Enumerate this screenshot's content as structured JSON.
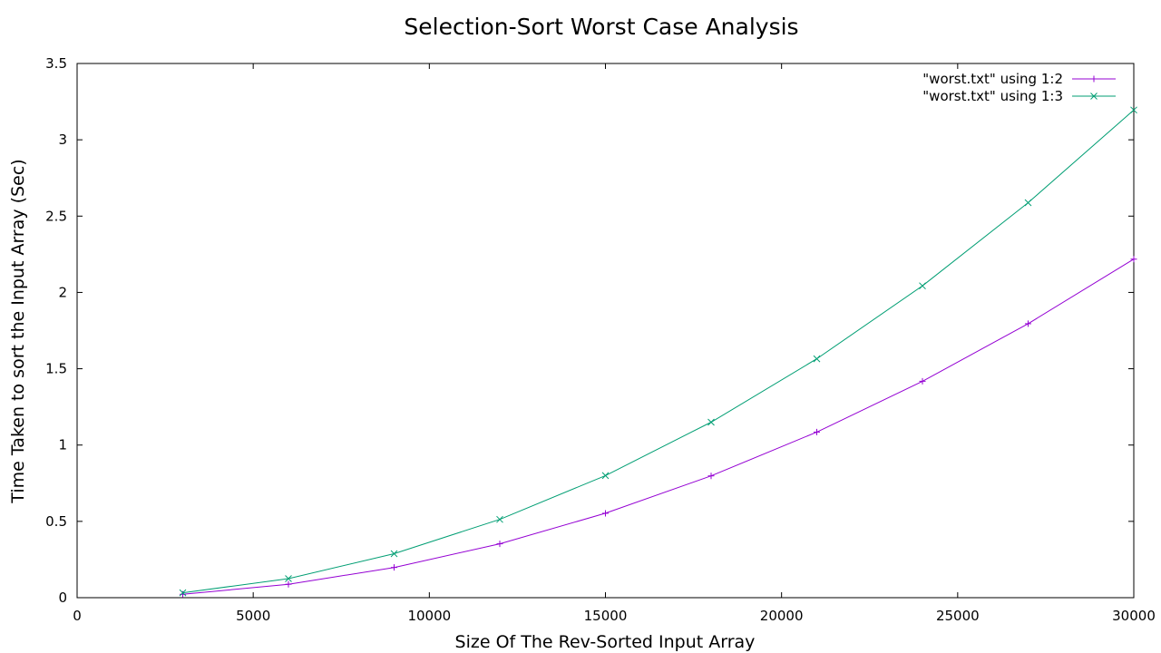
{
  "chart_data": {
    "type": "line",
    "title": "Selection-Sort Worst Case Analysis",
    "xlabel": "Size Of The Rev-Sorted Input Array",
    "ylabel": "Time Taken to sort the Input Array (Sec)",
    "xlim": [
      0,
      30000
    ],
    "ylim": [
      0,
      3.5
    ],
    "xticks": [
      "0",
      "5000",
      "10000",
      "15000",
      "20000",
      "25000",
      "30000"
    ],
    "yticks": [
      "0",
      "0.5",
      "1",
      "1.5",
      "2",
      "2.5",
      "3",
      "3.5"
    ],
    "grid": false,
    "legend_position": "top-right",
    "x": [
      3000,
      6000,
      9000,
      12000,
      15000,
      18000,
      21000,
      24000,
      27000,
      30000
    ],
    "series": [
      {
        "name": "\"worst.txt\" using 1:2",
        "color": "#9400d3",
        "marker": "plus",
        "values": [
          0.022,
          0.088,
          0.198,
          0.353,
          0.553,
          0.798,
          1.085,
          1.418,
          1.795,
          2.218
        ]
      },
      {
        "name": "\"worst.txt\" using 1:3",
        "color": "#009e73",
        "marker": "cross",
        "values": [
          0.032,
          0.125,
          0.288,
          0.513,
          0.8,
          1.15,
          1.565,
          2.043,
          2.588,
          3.195
        ]
      }
    ]
  }
}
